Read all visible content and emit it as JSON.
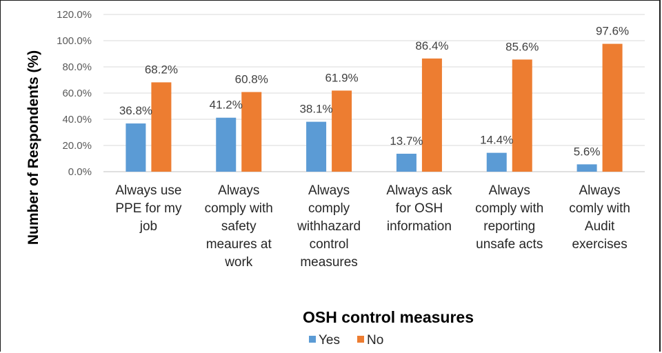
{
  "chart_data": {
    "type": "bar",
    "categories": [
      [
        "Always use",
        "PPE for my",
        "job"
      ],
      [
        "Always",
        "comply with",
        "safety",
        "meaures at",
        "work"
      ],
      [
        "Always",
        "comply",
        "withhazard",
        "control",
        "measures"
      ],
      [
        "Always ask",
        "for OSH",
        "information"
      ],
      [
        "Always",
        "comply with",
        "reporting",
        "unsafe acts"
      ],
      [
        "Always",
        "comly with",
        "Audit",
        "exercises"
      ]
    ],
    "series": [
      {
        "name": "Yes",
        "values": [
          36.8,
          41.2,
          38.1,
          13.7,
          14.4,
          5.6
        ],
        "labels": [
          "36.8%",
          "41.2%",
          "38.1%",
          "13.7%",
          "14.4%",
          "5.6%"
        ],
        "color": "#5b9bd5"
      },
      {
        "name": "No",
        "values": [
          68.2,
          60.8,
          61.9,
          86.4,
          85.6,
          97.6
        ],
        "labels": [
          "68.2%",
          "60.8%",
          "61.9%",
          "86.4%",
          "85.6%",
          "97.6%"
        ],
        "color": "#ed7d31"
      }
    ],
    "y_ticks": [
      "0.0%",
      "20.0%",
      "40.0%",
      "60.0%",
      "80.0%",
      "100.0%",
      "120.0%"
    ],
    "ylim": [
      0,
      120
    ],
    "xlabel": "OSH control measures",
    "ylabel": "Number of Respondents (%)",
    "grid": true,
    "legend": "bottom"
  }
}
